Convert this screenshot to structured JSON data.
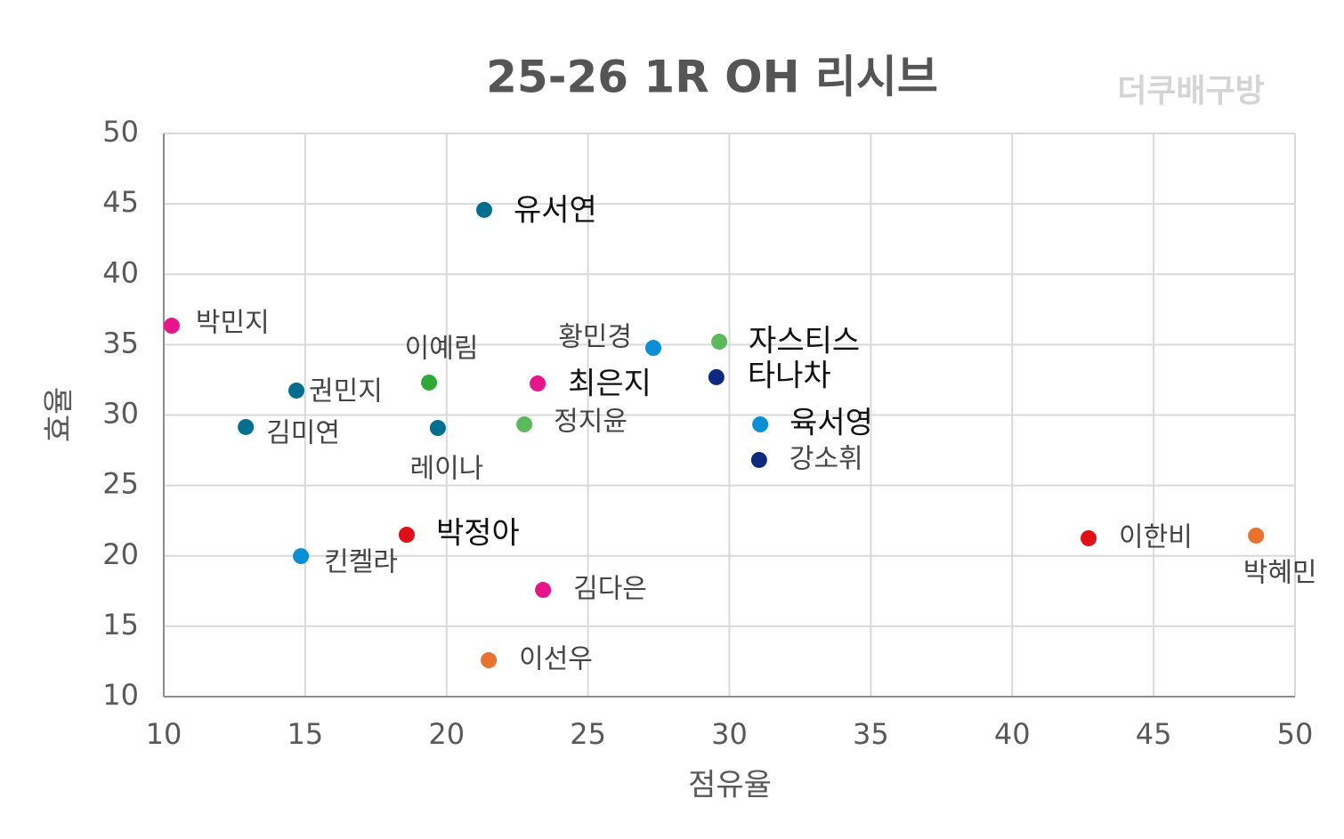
{
  "chart_data": {
    "type": "scatter",
    "title": "25-26 1R OH 리시브",
    "watermark": "더쿠배구방",
    "x_label": "점유율",
    "y_label": "효율",
    "xlim": [
      10,
      50
    ],
    "xticks": [
      10,
      15,
      20,
      25,
      30,
      35,
      40,
      45,
      50
    ],
    "ylim": [
      10,
      50
    ],
    "yticks": [
      10,
      15,
      20,
      25,
      30,
      35,
      40,
      45,
      50
    ],
    "grid": true,
    "series": [
      {
        "name": "박민지",
        "color": "#e6168a",
        "x": [
          10.28
        ],
        "values": [
          36.35
        ]
      },
      {
        "name": "유서연",
        "color": "#006e8c",
        "x": [
          21.33
        ],
        "values": [
          44.57
        ]
      },
      {
        "name": "권민지",
        "color": "#006e8c",
        "x": [
          14.69
        ],
        "values": [
          31.74
        ]
      },
      {
        "name": "김미연",
        "color": "#006e8c",
        "x": [
          12.9
        ],
        "values": [
          29.15
        ]
      },
      {
        "name": "이예림",
        "color": "#2ea836",
        "x": [
          19.38
        ],
        "values": [
          32.31
        ]
      },
      {
        "name": "레이나",
        "color": "#006e8c",
        "x": [
          19.69
        ],
        "values": [
          29.08
        ]
      },
      {
        "name": "최은지",
        "color": "#e6168a",
        "x": [
          23.22
        ],
        "values": [
          32.24
        ]
      },
      {
        "name": "정지윤",
        "color": "#5cb85c",
        "x": [
          22.75
        ],
        "values": [
          29.34
        ]
      },
      {
        "name": "황민경",
        "color": "#0a8fd6",
        "x": [
          27.31
        ],
        "values": [
          34.77
        ]
      },
      {
        "name": "자스티스",
        "color": "#5cb85c",
        "x": [
          29.64
        ],
        "values": [
          35.21
        ]
      },
      {
        "name": "타나차",
        "color": "#0d2a7f",
        "x": [
          29.54
        ],
        "values": [
          32.69
        ]
      },
      {
        "name": "육서영",
        "color": "#0a8fd6",
        "x": [
          31.09
        ],
        "values": [
          29.34
        ]
      },
      {
        "name": "강소휘",
        "color": "#0d2a7f",
        "x": [
          31.05
        ],
        "values": [
          26.81
        ]
      },
      {
        "name": "박정아",
        "color": "#e01018",
        "x": [
          18.59
        ],
        "values": [
          21.5
        ]
      },
      {
        "name": "킨켈라",
        "color": "#0a8fd6",
        "x": [
          14.85
        ],
        "values": [
          19.98
        ]
      },
      {
        "name": "김다은",
        "color": "#e6168a",
        "x": [
          23.41
        ],
        "values": [
          17.58
        ]
      },
      {
        "name": "이선우",
        "color": "#e8722e",
        "x": [
          21.49
        ],
        "values": [
          12.59
        ]
      },
      {
        "name": "이한비",
        "color": "#e01018",
        "x": [
          42.7
        ],
        "values": [
          21.25
        ]
      },
      {
        "name": "박혜민",
        "color": "#e8722e",
        "x": [
          48.62
        ],
        "values": [
          21.44
        ]
      }
    ]
  }
}
